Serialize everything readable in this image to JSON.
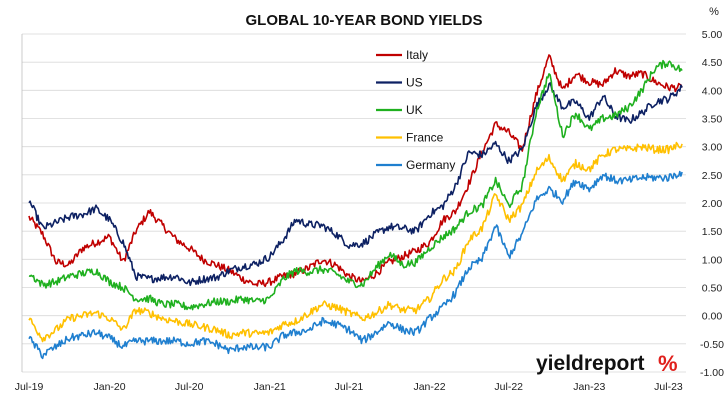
{
  "chart_data": {
    "type": "line",
    "title": "GLOBAL 10-YEAR BOND YIELDS",
    "y_unit": "%",
    "ylim": [
      -1.0,
      5.0
    ],
    "y_ticks": [
      "5.00",
      "4.50",
      "4.00",
      "3.50",
      "3.00",
      "2.50",
      "2.00",
      "1.50",
      "1.00",
      "0.50",
      "0.00",
      "-0.50",
      "-1.00"
    ],
    "y_tick_values": [
      5.0,
      4.5,
      4.0,
      3.5,
      3.0,
      2.5,
      2.0,
      1.5,
      1.0,
      0.5,
      0.0,
      -0.5,
      -1.0
    ],
    "x_ticks": [
      "Jul-19",
      "Jan-20",
      "Jul-20",
      "Jan-21",
      "Jul-21",
      "Jan-22",
      "Jul-22",
      "Jan-23",
      "Jul-23"
    ],
    "x_tick_dates": [
      "2019-07",
      "2020-01",
      "2020-07",
      "2021-01",
      "2021-07",
      "2022-01",
      "2022-07",
      "2023-01",
      "2023-07"
    ],
    "grid": true,
    "legend_position": "top-center",
    "series": [
      {
        "name": "Italy",
        "color": "#c00000",
        "x": [
          "2019-07",
          "2019-08",
          "2019-09",
          "2019-10",
          "2019-11",
          "2019-12",
          "2020-01",
          "2020-02",
          "2020-03",
          "2020-04",
          "2020-05",
          "2020-06",
          "2020-07",
          "2020-08",
          "2020-09",
          "2020-10",
          "2020-11",
          "2020-12",
          "2021-01",
          "2021-02",
          "2021-03",
          "2021-04",
          "2021-05",
          "2021-06",
          "2021-07",
          "2021-08",
          "2021-09",
          "2021-10",
          "2021-11",
          "2021-12",
          "2022-01",
          "2022-02",
          "2022-03",
          "2022-04",
          "2022-05",
          "2022-06",
          "2022-07",
          "2022-08",
          "2022-09",
          "2022-10",
          "2022-11",
          "2022-12",
          "2023-01",
          "2023-02",
          "2023-03",
          "2023-04",
          "2023-05",
          "2023-06",
          "2023-07",
          "2023-08"
        ],
        "y": [
          1.75,
          1.45,
          0.95,
          0.9,
          1.2,
          1.3,
          1.4,
          0.95,
          1.5,
          1.85,
          1.6,
          1.35,
          1.2,
          1.0,
          0.9,
          0.8,
          0.65,
          0.55,
          0.6,
          0.7,
          0.75,
          0.85,
          1.0,
          0.9,
          0.7,
          0.6,
          0.75,
          0.95,
          1.05,
          1.15,
          1.3,
          1.7,
          1.85,
          2.35,
          2.9,
          3.4,
          3.25,
          2.95,
          3.9,
          4.6,
          4.0,
          4.3,
          4.15,
          4.1,
          4.35,
          4.25,
          4.3,
          4.15,
          4.05,
          4.05
        ]
      },
      {
        "name": "US",
        "color": "#0d2163",
        "x": [
          "2019-07",
          "2019-08",
          "2019-09",
          "2019-10",
          "2019-11",
          "2019-12",
          "2020-01",
          "2020-02",
          "2020-03",
          "2020-04",
          "2020-05",
          "2020-06",
          "2020-07",
          "2020-08",
          "2020-09",
          "2020-10",
          "2020-11",
          "2020-12",
          "2021-01",
          "2021-02",
          "2021-03",
          "2021-04",
          "2021-05",
          "2021-06",
          "2021-07",
          "2021-08",
          "2021-09",
          "2021-10",
          "2021-11",
          "2021-12",
          "2022-01",
          "2022-02",
          "2022-03",
          "2022-04",
          "2022-05",
          "2022-06",
          "2022-07",
          "2022-08",
          "2022-09",
          "2022-10",
          "2022-11",
          "2022-12",
          "2023-01",
          "2023-02",
          "2023-03",
          "2023-04",
          "2023-05",
          "2023-06",
          "2023-07",
          "2023-08"
        ],
        "y": [
          2.05,
          1.55,
          1.65,
          1.75,
          1.8,
          1.9,
          1.7,
          1.3,
          0.7,
          0.65,
          0.68,
          0.7,
          0.58,
          0.65,
          0.68,
          0.8,
          0.88,
          0.92,
          1.05,
          1.35,
          1.7,
          1.62,
          1.6,
          1.45,
          1.25,
          1.28,
          1.45,
          1.58,
          1.55,
          1.5,
          1.8,
          1.95,
          2.3,
          2.9,
          2.85,
          3.05,
          2.75,
          2.95,
          3.7,
          4.1,
          3.7,
          3.8,
          3.5,
          3.9,
          3.55,
          3.45,
          3.6,
          3.8,
          3.85,
          4.05
        ]
      },
      {
        "name": "UK",
        "color": "#1fb01f",
        "x": [
          "2019-07",
          "2019-08",
          "2019-09",
          "2019-10",
          "2019-11",
          "2019-12",
          "2020-01",
          "2020-02",
          "2020-03",
          "2020-04",
          "2020-05",
          "2020-06",
          "2020-07",
          "2020-08",
          "2020-09",
          "2020-10",
          "2020-11",
          "2020-12",
          "2021-01",
          "2021-02",
          "2021-03",
          "2021-04",
          "2021-05",
          "2021-06",
          "2021-07",
          "2021-08",
          "2021-09",
          "2021-10",
          "2021-11",
          "2021-12",
          "2022-01",
          "2022-02",
          "2022-03",
          "2022-04",
          "2022-05",
          "2022-06",
          "2022-07",
          "2022-08",
          "2022-09",
          "2022-10",
          "2022-11",
          "2022-12",
          "2023-01",
          "2023-02",
          "2023-03",
          "2023-04",
          "2023-05",
          "2023-06",
          "2023-07",
          "2023-08"
        ],
        "y": [
          0.75,
          0.55,
          0.6,
          0.7,
          0.75,
          0.8,
          0.6,
          0.5,
          0.3,
          0.3,
          0.2,
          0.2,
          0.15,
          0.2,
          0.25,
          0.25,
          0.3,
          0.25,
          0.3,
          0.65,
          0.8,
          0.78,
          0.82,
          0.75,
          0.6,
          0.55,
          0.85,
          1.1,
          0.9,
          0.95,
          1.2,
          1.4,
          1.55,
          1.85,
          1.95,
          2.4,
          1.95,
          2.3,
          3.6,
          4.3,
          3.2,
          3.6,
          3.3,
          3.5,
          3.55,
          3.7,
          4.0,
          4.4,
          4.5,
          4.35
        ]
      },
      {
        "name": "France",
        "color": "#ffc000",
        "x": [
          "2019-07",
          "2019-08",
          "2019-09",
          "2019-10",
          "2019-11",
          "2019-12",
          "2020-01",
          "2020-02",
          "2020-03",
          "2020-04",
          "2020-05",
          "2020-06",
          "2020-07",
          "2020-08",
          "2020-09",
          "2020-10",
          "2020-11",
          "2020-12",
          "2021-01",
          "2021-02",
          "2021-03",
          "2021-04",
          "2021-05",
          "2021-06",
          "2021-07",
          "2021-08",
          "2021-09",
          "2021-10",
          "2021-11",
          "2021-12",
          "2022-01",
          "2022-02",
          "2022-03",
          "2022-04",
          "2022-05",
          "2022-06",
          "2022-07",
          "2022-08",
          "2022-09",
          "2022-10",
          "2022-11",
          "2022-12",
          "2023-01",
          "2023-02",
          "2023-03",
          "2023-04",
          "2023-05",
          "2023-06",
          "2023-07",
          "2023-08"
        ],
        "y": [
          -0.05,
          -0.4,
          -0.25,
          -0.05,
          0.0,
          0.05,
          -0.05,
          -0.25,
          0.1,
          0.05,
          -0.05,
          -0.1,
          -0.15,
          -0.2,
          -0.25,
          -0.35,
          -0.3,
          -0.32,
          -0.3,
          -0.15,
          -0.1,
          0.05,
          0.2,
          0.15,
          0.05,
          -0.05,
          0.05,
          0.2,
          0.1,
          0.1,
          0.3,
          0.65,
          0.8,
          1.35,
          1.55,
          2.15,
          1.7,
          1.95,
          2.55,
          2.8,
          2.4,
          2.7,
          2.6,
          2.85,
          2.95,
          2.95,
          3.0,
          2.95,
          2.95,
          3.05
        ]
      },
      {
        "name": "Germany",
        "color": "#1f7fcf",
        "x": [
          "2019-07",
          "2019-08",
          "2019-09",
          "2019-10",
          "2019-11",
          "2019-12",
          "2020-01",
          "2020-02",
          "2020-03",
          "2020-04",
          "2020-05",
          "2020-06",
          "2020-07",
          "2020-08",
          "2020-09",
          "2020-10",
          "2020-11",
          "2020-12",
          "2021-01",
          "2021-02",
          "2021-03",
          "2021-04",
          "2021-05",
          "2021-06",
          "2021-07",
          "2021-08",
          "2021-09",
          "2021-10",
          "2021-11",
          "2021-12",
          "2022-01",
          "2022-02",
          "2022-03",
          "2022-04",
          "2022-05",
          "2022-06",
          "2022-07",
          "2022-08",
          "2022-09",
          "2022-10",
          "2022-11",
          "2022-12",
          "2023-01",
          "2023-02",
          "2023-03",
          "2023-04",
          "2023-05",
          "2023-06",
          "2023-07",
          "2023-08"
        ],
        "y": [
          -0.4,
          -0.7,
          -0.55,
          -0.4,
          -0.35,
          -0.3,
          -0.4,
          -0.55,
          -0.45,
          -0.45,
          -0.45,
          -0.45,
          -0.5,
          -0.45,
          -0.5,
          -0.62,
          -0.55,
          -0.57,
          -0.55,
          -0.35,
          -0.3,
          -0.25,
          -0.1,
          -0.15,
          -0.25,
          -0.45,
          -0.3,
          -0.12,
          -0.25,
          -0.3,
          -0.05,
          0.15,
          0.4,
          0.85,
          1.0,
          1.6,
          1.05,
          1.45,
          2.05,
          2.25,
          2.05,
          2.4,
          2.25,
          2.5,
          2.4,
          2.4,
          2.45,
          2.45,
          2.45,
          2.55
        ]
      }
    ]
  },
  "branding": {
    "logo_text": "yieldreport",
    "logo_accent": "%"
  }
}
